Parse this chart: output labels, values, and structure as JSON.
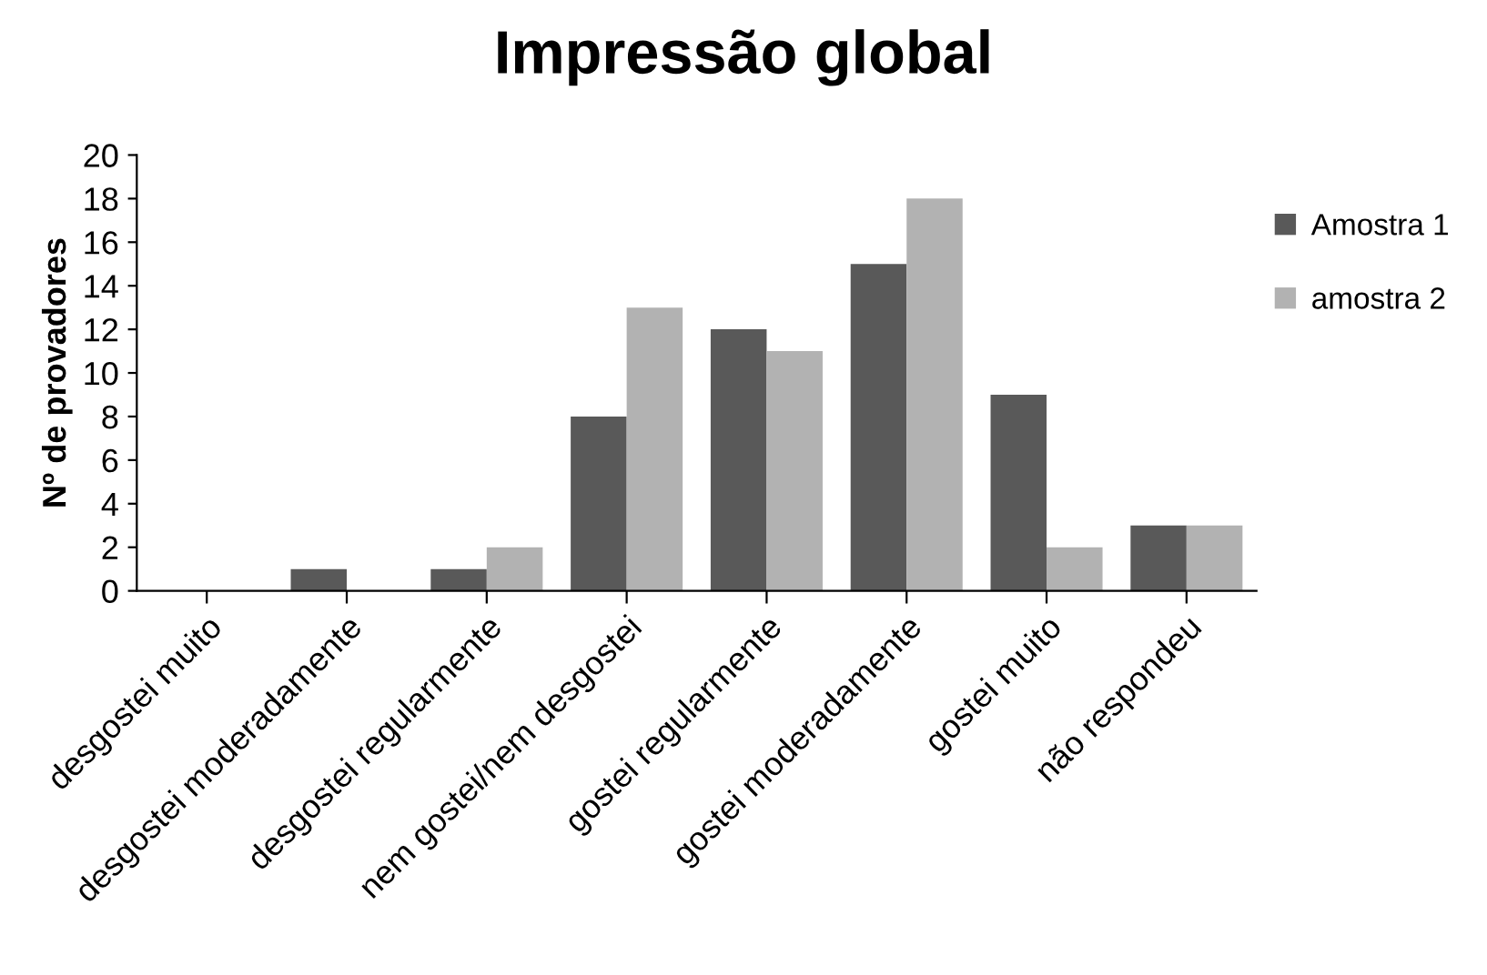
{
  "chart_data": {
    "type": "bar",
    "title": "Impressão global",
    "ylabel": "Nº de provadores",
    "categories": [
      "desgostei muito",
      "desgostei moderadamente",
      "desgostei regularmente",
      "nem gostei/nem desgostei",
      "gostei regularmente",
      "gostei moderadamente",
      "gostei muito",
      "não respondeu"
    ],
    "series": [
      {
        "name": "Amostra 1",
        "color": "#595959",
        "values": [
          0,
          1,
          1,
          8,
          12,
          15,
          9,
          3
        ]
      },
      {
        "name": "amostra 2",
        "color": "#b2b2b2",
        "values": [
          0,
          0,
          2,
          13,
          11,
          18,
          2,
          3
        ]
      }
    ],
    "ylim": [
      0,
      20
    ],
    "yticks": [
      0,
      2,
      4,
      6,
      8,
      10,
      12,
      14,
      16,
      18,
      20
    ],
    "grid": false,
    "legend": "right"
  }
}
